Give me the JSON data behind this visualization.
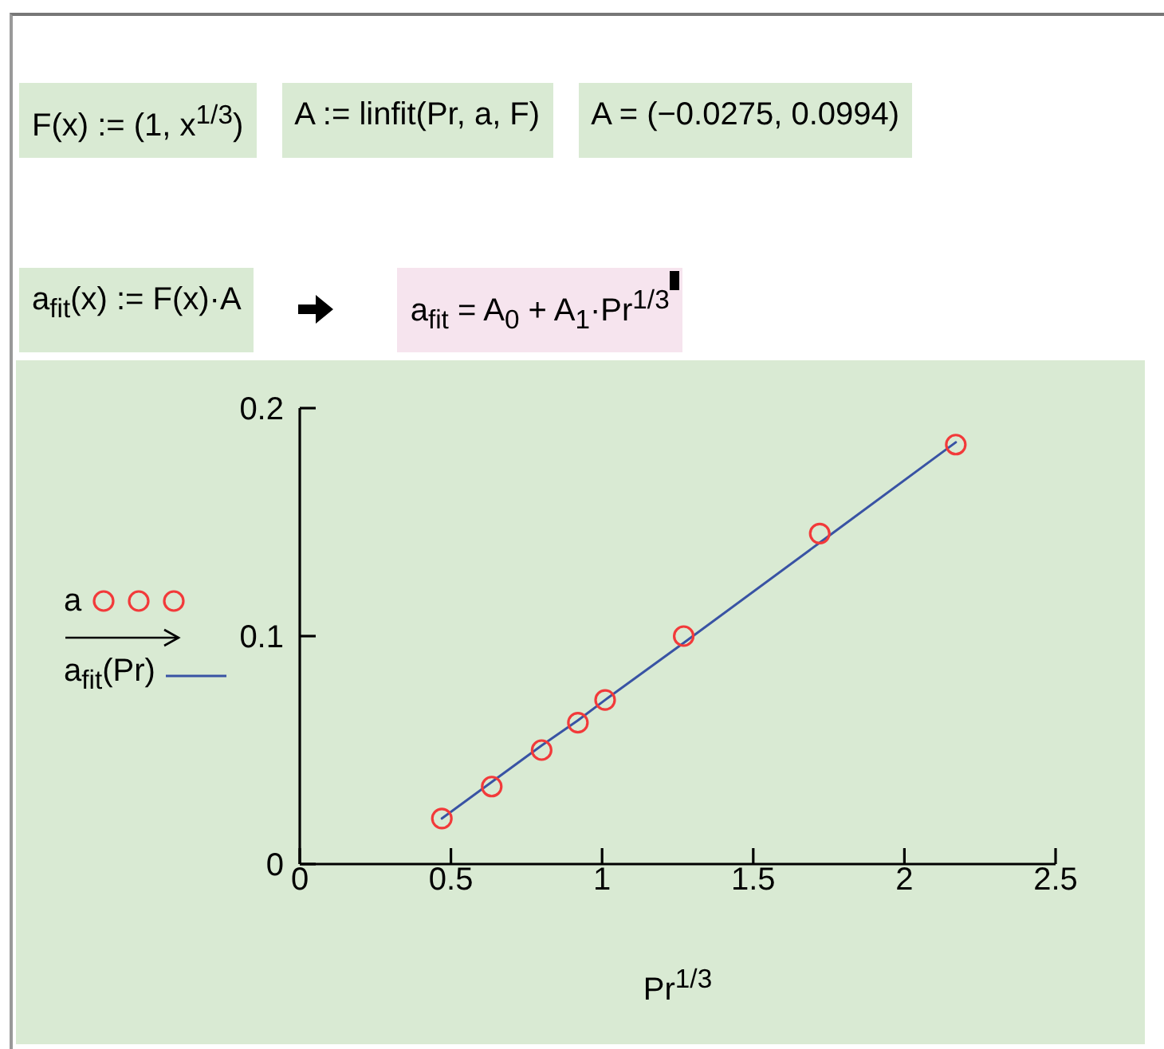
{
  "chart_data": {
    "type": "scatter",
    "xlabel": "Pr$^{1/3}$",
    "xlim": [
      0,
      2.5
    ],
    "xticks": [
      0,
      0.5,
      1,
      1.5,
      2,
      2.5
    ],
    "ylim": [
      0,
      0.2
    ],
    "yticks": [
      0,
      0.1,
      0.2
    ],
    "legend": "left",
    "series": [
      {
        "name": "a",
        "marker": "circle",
        "color": "#f23a3a",
        "x": [
          0.47,
          0.635,
          0.8,
          0.92,
          1.01,
          1.27,
          1.72,
          2.17
        ],
        "values": [
          0.02,
          0.034,
          0.05,
          0.062,
          0.072,
          0.1,
          0.145,
          0.184
        ]
      },
      {
        "name": "a$_{fit}$(Pr)",
        "type": "line",
        "marker": "none",
        "color": "#3953a4",
        "x": [
          0.47,
          0.635,
          0.8,
          0.92,
          1.01,
          1.27,
          1.72,
          2.17
        ],
        "values": [
          0.02,
          0.036,
          0.052,
          0.063,
          0.072,
          0.097,
          0.141,
          0.185
        ]
      }
    ],
    "annotations": [
      "F(x) := (1, x$^{1/3}$)",
      "A := linfit(Pr, a, F)",
      "A = (−0.0275, 0.0994)",
      "a$_{fit}$(x) := F(x)·A",
      "a$_{fit}$ = A$_{0}$ + A$_{1}$·Pr$^{1/3}$"
    ]
  }
}
